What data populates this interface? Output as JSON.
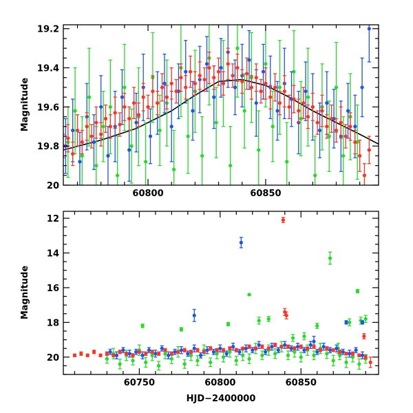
{
  "chart_data": [
    {
      "type": "scatter",
      "panel": "top",
      "title": "",
      "xlabel": "",
      "ylabel": "Magnitude",
      "xlim": [
        60764,
        60898
      ],
      "ylim": [
        20.0,
        19.18
      ],
      "y_inverted": true,
      "xticks": [
        60800,
        60850
      ],
      "yticks": [
        19.2,
        19.4,
        19.6,
        19.8,
        20
      ],
      "ytick_labels": [
        "19.2",
        "19.4",
        "19.6",
        "19.8",
        "20"
      ],
      "grid": false,
      "legend": "none",
      "model_curve": {
        "color": "#000000",
        "x": [
          60764,
          60780,
          60795,
          60810,
          60820,
          60830,
          60840,
          60850,
          60860,
          60870,
          60880,
          60890,
          60898
        ],
        "y": [
          19.82,
          19.77,
          19.71,
          19.62,
          19.54,
          19.47,
          19.46,
          19.49,
          19.55,
          19.62,
          19.68,
          19.74,
          19.79
        ]
      },
      "series": [
        {
          "name": "",
          "color": "#22dd22",
          "x": [
            60766,
            60769,
            60772,
            60775,
            60778,
            60781,
            60784,
            60787,
            60790,
            60793,
            60796,
            60799,
            60802,
            60805,
            60808,
            60811,
            60814,
            60817,
            60820,
            60823,
            60826,
            60829,
            60832,
            60835,
            60838,
            60841,
            60844,
            60847,
            60850,
            60853,
            60856,
            60859,
            60862,
            60865,
            60868,
            60871,
            60874,
            60877,
            60880,
            60883,
            60886,
            60889
          ],
          "y": [
            19.78,
            19.62,
            19.85,
            19.55,
            19.9,
            19.7,
            19.6,
            19.95,
            19.5,
            19.8,
            19.65,
            19.88,
            19.45,
            19.72,
            19.58,
            19.92,
            19.4,
            19.75,
            19.52,
            19.85,
            19.35,
            19.68,
            19.48,
            19.9,
            19.3,
            19.62,
            19.45,
            19.82,
            19.38,
            19.7,
            19.5,
            19.88,
            19.42,
            19.66,
            19.55,
            19.95,
            19.6,
            19.75,
            19.5,
            19.85,
            19.65,
            19.78
          ],
          "err": [
            0.18,
            0.22,
            0.2,
            0.25,
            0.2,
            0.18,
            0.24,
            0.2,
            0.22,
            0.19,
            0.25,
            0.2,
            0.23,
            0.18,
            0.22,
            0.2,
            0.25,
            0.19,
            0.21,
            0.2,
            0.24,
            0.18,
            0.22,
            0.2,
            0.25,
            0.19,
            0.23,
            0.2,
            0.22,
            0.18,
            0.24,
            0.2,
            0.21,
            0.19,
            0.25,
            0.2,
            0.22,
            0.18,
            0.23,
            0.2,
            0.22,
            0.19
          ]
        },
        {
          "name": "",
          "color": "#1a55ee",
          "x": [
            60765,
            60768,
            60771,
            60774,
            60777,
            60780,
            60783,
            60786,
            60789,
            60792,
            60795,
            60798,
            60801,
            60804,
            60807,
            60810,
            60813,
            60816,
            60819,
            60822,
            60825,
            60828,
            60831,
            60834,
            60837,
            60840,
            60843,
            60846,
            60849,
            60852,
            60855,
            60858,
            60861,
            60864,
            60867,
            60870,
            60873,
            60876,
            60879,
            60882,
            60885,
            60888,
            60891,
            60894
          ],
          "y": [
            19.8,
            19.72,
            19.88,
            19.65,
            19.78,
            19.6,
            19.85,
            19.7,
            19.55,
            19.82,
            19.68,
            19.5,
            19.75,
            19.58,
            19.48,
            19.7,
            19.52,
            19.42,
            19.62,
            19.46,
            19.38,
            19.55,
            19.4,
            19.32,
            19.5,
            19.44,
            19.36,
            19.58,
            19.42,
            19.5,
            19.62,
            19.48,
            19.56,
            19.68,
            19.52,
            19.6,
            19.72,
            19.58,
            19.66,
            19.75,
            19.62,
            19.7,
            19.5,
            19.2
          ],
          "err": [
            0.14,
            0.16,
            0.15,
            0.17,
            0.14,
            0.16,
            0.15,
            0.18,
            0.14,
            0.16,
            0.15,
            0.17,
            0.14,
            0.16,
            0.15,
            0.18,
            0.14,
            0.16,
            0.15,
            0.17,
            0.14,
            0.16,
            0.15,
            0.18,
            0.14,
            0.16,
            0.15,
            0.17,
            0.14,
            0.16,
            0.15,
            0.18,
            0.14,
            0.16,
            0.15,
            0.17,
            0.14,
            0.16,
            0.15,
            0.18,
            0.14,
            0.16,
            0.15,
            0.17
          ]
        },
        {
          "name": "",
          "color": "#ff3322",
          "x": [
            60764,
            60766,
            60768,
            60770,
            60772,
            60774,
            60776,
            60778,
            60780,
            60782,
            60784,
            60786,
            60788,
            60790,
            60792,
            60794,
            60796,
            60798,
            60800,
            60802,
            60804,
            60806,
            60808,
            60810,
            60812,
            60814,
            60816,
            60818,
            60820,
            60822,
            60824,
            60826,
            60828,
            60830,
            60832,
            60834,
            60836,
            60838,
            60840,
            60842,
            60844,
            60846,
            60848,
            60850,
            60852,
            60854,
            60856,
            60858,
            60860,
            60862,
            60864,
            60866,
            60868,
            60870,
            60872,
            60874,
            60876,
            60878,
            60880,
            60882,
            60884,
            60886,
            60888,
            60890,
            60892,
            60894
          ],
          "y": [
            19.8,
            19.76,
            19.84,
            19.72,
            19.78,
            19.7,
            19.75,
            19.68,
            19.74,
            19.66,
            19.7,
            19.63,
            19.69,
            19.6,
            19.66,
            19.58,
            19.64,
            19.55,
            19.6,
            19.52,
            19.58,
            19.5,
            19.55,
            19.48,
            19.52,
            19.45,
            19.5,
            19.42,
            19.48,
            19.44,
            19.46,
            19.4,
            19.45,
            19.42,
            19.48,
            19.38,
            19.44,
            19.4,
            19.47,
            19.43,
            19.5,
            19.45,
            19.52,
            19.48,
            19.55,
            19.5,
            19.58,
            19.52,
            19.6,
            19.56,
            19.62,
            19.58,
            19.65,
            19.6,
            19.68,
            19.62,
            19.7,
            19.66,
            19.72,
            19.68,
            19.75,
            19.7,
            19.78,
            19.85,
            19.95,
            19.82
          ],
          "err": [
            0.06,
            0.07,
            0.06,
            0.08,
            0.06,
            0.07,
            0.06,
            0.08,
            0.06,
            0.07,
            0.06,
            0.08,
            0.06,
            0.07,
            0.06,
            0.08,
            0.06,
            0.07,
            0.06,
            0.08,
            0.06,
            0.07,
            0.06,
            0.08,
            0.06,
            0.07,
            0.06,
            0.08,
            0.06,
            0.07,
            0.06,
            0.08,
            0.06,
            0.07,
            0.06,
            0.08,
            0.06,
            0.07,
            0.06,
            0.08,
            0.06,
            0.07,
            0.06,
            0.08,
            0.06,
            0.07,
            0.06,
            0.08,
            0.06,
            0.07,
            0.06,
            0.08,
            0.06,
            0.07,
            0.06,
            0.08,
            0.06,
            0.07,
            0.06,
            0.08,
            0.06,
            0.07,
            0.06,
            0.08,
            0.06,
            0.07
          ]
        }
      ]
    },
    {
      "type": "scatter",
      "panel": "bottom",
      "title": "",
      "xlabel": "HJD−2400000",
      "ylabel": "Magnitude",
      "xlim": [
        60703,
        60898
      ],
      "ylim": [
        21.0,
        11.6
      ],
      "y_inverted": true,
      "xticks": [
        60750,
        60800,
        60850
      ],
      "yticks": [
        12,
        14,
        16,
        18,
        20
      ],
      "ytick_labels": [
        "12",
        "14",
        "16",
        "18",
        "20"
      ],
      "grid": false,
      "legend": "none",
      "series": [
        {
          "name": "",
          "color": "#22dd22",
          "x": [
            60730,
            60734,
            60738,
            60742,
            60746,
            60750,
            60754,
            60758,
            60762,
            60766,
            60770,
            60774,
            60778,
            60782,
            60786,
            60790,
            60794,
            60798,
            60802,
            60806,
            60810,
            60814,
            60818,
            60822,
            60826,
            60830,
            60834,
            60838,
            60842,
            60846,
            60850,
            60854,
            60858,
            60862,
            60866,
            60870,
            60874,
            60878,
            60882,
            60886,
            60890,
            60752,
            60776,
            60805,
            60818,
            60824,
            60830,
            60845,
            60852,
            60860,
            60868,
            60873,
            60880,
            60885,
            60887,
            60890
          ],
          "y": [
            20.1,
            19.8,
            20.4,
            19.9,
            20.2,
            19.6,
            20.3,
            19.9,
            20.5,
            19.8,
            20.1,
            19.7,
            20.4,
            19.9,
            20.2,
            19.6,
            20.3,
            19.8,
            20.0,
            19.7,
            20.2,
            19.9,
            20.1,
            19.5,
            19.9,
            19.6,
            19.8,
            19.4,
            19.9,
            19.7,
            20.0,
            19.6,
            19.9,
            19.5,
            19.8,
            20.2,
            19.9,
            20.3,
            20.0,
            20.4,
            20.1,
            18.2,
            18.4,
            18.1,
            16.4,
            17.9,
            17.8,
            18.9,
            18.8,
            18.2,
            14.3,
            19.5,
            18.0,
            16.2,
            17.9,
            17.8
          ],
          "err": [
            0.25,
            0.3,
            0.28,
            0.3,
            0.25,
            0.3,
            0.28,
            0.3,
            0.25,
            0.3,
            0.28,
            0.3,
            0.25,
            0.3,
            0.28,
            0.3,
            0.25,
            0.3,
            0.28,
            0.3,
            0.25,
            0.3,
            0.28,
            0.3,
            0.25,
            0.3,
            0.28,
            0.3,
            0.25,
            0.3,
            0.28,
            0.3,
            0.25,
            0.3,
            0.28,
            0.3,
            0.25,
            0.3,
            0.28,
            0.3,
            0.25,
            0.1,
            0.1,
            0.1,
            0.05,
            0.2,
            0.15,
            0.2,
            0.2,
            0.15,
            0.35,
            0.3,
            0.2,
            0.1,
            0.2,
            0.2
          ]
        },
        {
          "name": "",
          "color": "#1a55ee",
          "x": [
            60732,
            60736,
            60740,
            60744,
            60748,
            60752,
            60756,
            60760,
            60764,
            60768,
            60772,
            60776,
            60780,
            60784,
            60788,
            60792,
            60796,
            60800,
            60804,
            60808,
            60812,
            60816,
            60820,
            60824,
            60828,
            60832,
            60836,
            60840,
            60844,
            60848,
            60852,
            60856,
            60860,
            60864,
            60868,
            60872,
            60876,
            60880,
            60884,
            60888,
            60813,
            60784,
            60878,
            60888,
            60858
          ],
          "y": [
            19.7,
            19.9,
            19.6,
            19.8,
            19.7,
            19.9,
            19.6,
            19.8,
            19.5,
            19.9,
            19.7,
            19.6,
            19.8,
            19.5,
            19.9,
            19.6,
            19.7,
            19.5,
            19.8,
            19.4,
            19.7,
            19.5,
            19.6,
            19.3,
            19.7,
            19.4,
            19.6,
            19.3,
            19.5,
            19.4,
            19.6,
            19.3,
            19.7,
            19.4,
            19.6,
            19.5,
            19.7,
            19.8,
            19.6,
            19.9,
            13.4,
            17.6,
            18.0,
            18.0,
            19.1
          ],
          "err": [
            0.15,
            0.2,
            0.15,
            0.2,
            0.15,
            0.2,
            0.15,
            0.2,
            0.15,
            0.2,
            0.15,
            0.2,
            0.15,
            0.2,
            0.15,
            0.2,
            0.15,
            0.2,
            0.15,
            0.2,
            0.15,
            0.2,
            0.15,
            0.2,
            0.15,
            0.2,
            0.15,
            0.2,
            0.15,
            0.2,
            0.15,
            0.2,
            0.15,
            0.2,
            0.15,
            0.2,
            0.15,
            0.2,
            0.15,
            0.2,
            0.3,
            0.35,
            0.1,
            0.1,
            0.3
          ]
        },
        {
          "name": "",
          "color": "#ff3322",
          "x": [
            60710,
            60714,
            60718,
            60722,
            60726,
            60730,
            60734,
            60738,
            60742,
            60746,
            60750,
            60754,
            60758,
            60762,
            60766,
            60770,
            60774,
            60778,
            60782,
            60786,
            60790,
            60794,
            60798,
            60802,
            60806,
            60810,
            60814,
            60818,
            60822,
            60826,
            60830,
            60834,
            60838,
            60842,
            60846,
            60850,
            60854,
            60858,
            60862,
            60866,
            60870,
            60874,
            60878,
            60882,
            60886,
            60890,
            60893,
            60839,
            60840,
            60841,
            60889
          ],
          "y": [
            19.9,
            19.8,
            19.9,
            19.7,
            19.9,
            19.8,
            19.9,
            19.7,
            19.8,
            19.9,
            19.7,
            19.8,
            19.7,
            19.8,
            19.6,
            19.8,
            19.7,
            19.6,
            19.7,
            19.6,
            19.7,
            19.5,
            19.6,
            19.6,
            19.5,
            19.6,
            19.5,
            19.4,
            19.5,
            19.4,
            19.5,
            19.3,
            19.4,
            19.4,
            19.5,
            19.4,
            19.5,
            19.4,
            19.6,
            19.5,
            19.6,
            19.7,
            19.8,
            19.8,
            19.9,
            20.0,
            20.3,
            12.1,
            17.4,
            17.6,
            18.8
          ],
          "err": [
            0.08,
            0.1,
            0.08,
            0.1,
            0.08,
            0.1,
            0.08,
            0.1,
            0.08,
            0.1,
            0.08,
            0.1,
            0.08,
            0.1,
            0.08,
            0.1,
            0.08,
            0.1,
            0.08,
            0.1,
            0.08,
            0.1,
            0.08,
            0.1,
            0.08,
            0.1,
            0.08,
            0.1,
            0.08,
            0.1,
            0.08,
            0.1,
            0.08,
            0.1,
            0.08,
            0.1,
            0.08,
            0.1,
            0.08,
            0.1,
            0.08,
            0.1,
            0.08,
            0.1,
            0.08,
            0.1,
            0.3,
            0.15,
            0.2,
            0.2,
            0.15
          ]
        }
      ]
    }
  ]
}
